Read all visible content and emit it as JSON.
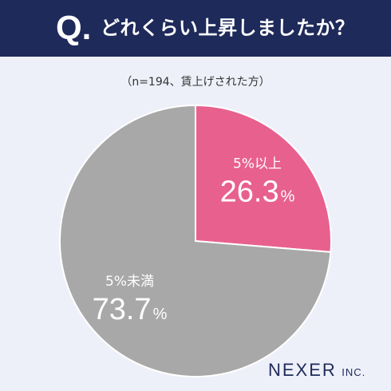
{
  "header": {
    "mark": "Q.",
    "question": "どれくらい上昇しましたか？"
  },
  "subtitle": "（n=194、賃上げされた方）",
  "logo": {
    "main": "NEXER",
    "suffix": "INC."
  },
  "colors": {
    "header_bg": "#1e2a5a",
    "background": "#eef0f9",
    "slice_pink": "#e8608e",
    "slice_gray": "#a8a8a8"
  },
  "chart_data": {
    "type": "pie",
    "slices": [
      {
        "label": "5%以上",
        "value": 26.3,
        "value_text": "26.3",
        "unit": "%",
        "color": "#e8608e"
      },
      {
        "label": "5%未満",
        "value": 73.7,
        "value_text": "73.7",
        "unit": "%",
        "color": "#a8a8a8"
      }
    ],
    "start": "12 o'clock",
    "direction": "clockwise"
  }
}
